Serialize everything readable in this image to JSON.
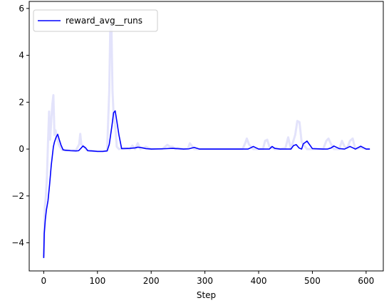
{
  "chart_data": {
    "type": "line",
    "title": "",
    "xlabel": "Step",
    "ylabel": "",
    "xlim": [
      -27,
      632
    ],
    "ylim": [
      -5.2,
      6.3
    ],
    "x_ticks": [
      0,
      100,
      200,
      300,
      400,
      500,
      600
    ],
    "y_ticks": [
      -4,
      -2,
      0,
      2,
      4,
      6
    ],
    "grid": false,
    "legend": {
      "position": "top-left",
      "entries": [
        "reward_avg__runs"
      ]
    },
    "series": [
      {
        "name": "",
        "role": "raw",
        "color": "#e3e3fb",
        "x": [
          0,
          2,
          4,
          6,
          8,
          10,
          12,
          14,
          16,
          18,
          20,
          22,
          24,
          26,
          28,
          30,
          35,
          40,
          50,
          60,
          66,
          68,
          70,
          75,
          80,
          90,
          100,
          110,
          118,
          122,
          124,
          126,
          128,
          130,
          133,
          136,
          140,
          150,
          160,
          165,
          170,
          175,
          180,
          190,
          200,
          210,
          220,
          226,
          230,
          235,
          240,
          245,
          250,
          260,
          268,
          272,
          280,
          300,
          350,
          370,
          375,
          378,
          382,
          390,
          400,
          408,
          412,
          416,
          420,
          430,
          440,
          450,
          455,
          460,
          468,
          472,
          476,
          480,
          490,
          500,
          520,
          526,
          530,
          535,
          540,
          550,
          555,
          560,
          565,
          570,
          575,
          580,
          590,
          600,
          607
        ],
        "y": [
          -4.6,
          -2.5,
          -2.0,
          -1.2,
          0.3,
          1.6,
          0.4,
          1.2,
          1.9,
          2.3,
          0.6,
          0.8,
          0.5,
          0.4,
          0.2,
          0.1,
          -0.05,
          -0.05,
          -0.05,
          -0.05,
          0.2,
          0.65,
          0.2,
          0.1,
          -0.05,
          -0.08,
          -0.1,
          -0.1,
          -0.05,
          2.5,
          5.4,
          5.3,
          2.5,
          1.5,
          1.0,
          0.1,
          0.0,
          0.05,
          0.0,
          0.15,
          0.0,
          0.25,
          0.0,
          0.1,
          0.0,
          0.0,
          0.0,
          0.1,
          0.18,
          0.1,
          0.1,
          0.0,
          0.05,
          0.0,
          0.0,
          0.25,
          0.0,
          0.0,
          0.0,
          0.0,
          0.25,
          0.45,
          0.2,
          0.0,
          0.0,
          0.0,
          0.35,
          0.4,
          0.1,
          0.0,
          0.0,
          0.05,
          0.5,
          0.0,
          0.6,
          1.2,
          1.15,
          0.3,
          0.0,
          0.0,
          0.0,
          0.35,
          0.45,
          0.2,
          0.0,
          0.0,
          0.35,
          0.1,
          0.05,
          0.35,
          0.45,
          0.0,
          0.05,
          0.0,
          0.0
        ]
      },
      {
        "name": "reward_avg__runs",
        "role": "smoothed",
        "color": "#0000ff",
        "x": [
          0,
          1,
          3,
          5,
          8,
          11,
          14,
          16,
          18,
          20,
          23,
          26,
          29,
          32,
          36,
          40,
          50,
          60,
          65,
          70,
          73,
          78,
          82,
          90,
          100,
          110,
          118,
          122,
          127,
          130,
          133,
          136,
          140,
          145,
          150,
          160,
          170,
          175,
          180,
          190,
          200,
          220,
          240,
          260,
          270,
          280,
          290,
          300,
          340,
          370,
          380,
          385,
          390,
          400,
          410,
          420,
          425,
          430,
          440,
          450,
          460,
          465,
          470,
          475,
          480,
          483,
          490,
          500,
          520,
          528,
          535,
          540,
          550,
          560,
          570,
          580,
          590,
          600,
          607
        ],
        "y": [
          -4.65,
          -3.6,
          -3.0,
          -2.6,
          -2.2,
          -1.5,
          -0.7,
          -0.3,
          0.1,
          0.3,
          0.5,
          0.63,
          0.4,
          0.18,
          -0.03,
          -0.05,
          -0.07,
          -0.08,
          -0.07,
          0.05,
          0.13,
          0.05,
          -0.07,
          -0.08,
          -0.1,
          -0.1,
          -0.08,
          0.2,
          1.0,
          1.55,
          1.63,
          1.2,
          0.6,
          0.02,
          0.02,
          0.03,
          0.05,
          0.08,
          0.07,
          0.02,
          0.0,
          0.01,
          0.03,
          0.0,
          0.01,
          0.07,
          0.0,
          0.0,
          0.0,
          0.0,
          0.0,
          0.05,
          0.11,
          0.0,
          0.0,
          0.0,
          0.11,
          0.03,
          0.0,
          0.0,
          0.0,
          0.15,
          0.19,
          0.05,
          0.0,
          0.22,
          0.34,
          0.02,
          0.0,
          0.0,
          0.05,
          0.13,
          0.02,
          0.0,
          0.11,
          0.0,
          0.12,
          0.0,
          0.0
        ]
      }
    ]
  }
}
